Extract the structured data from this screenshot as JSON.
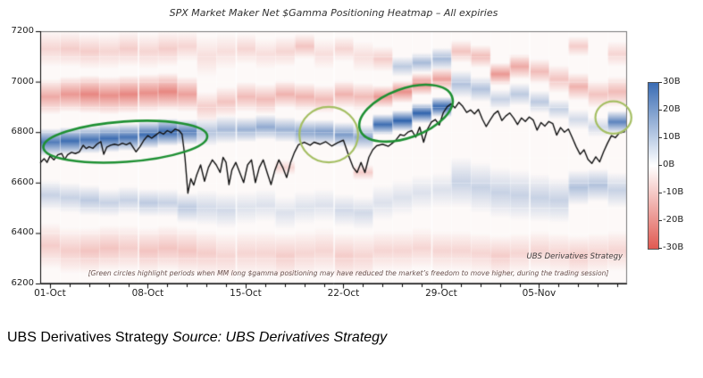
{
  "chart": {
    "title": "SPX Market Maker Net $Gamma Positioning Heatmap – All expiries",
    "watermark": "UBS Derivatives Strategy",
    "footnote": "[Green circles highlight periods when MM long $gamma positioning may have reduced the market’s freedom to move higher, during the trading session]",
    "colorbar": {
      "ticks": [
        "30B",
        "20B",
        "10B",
        "0B",
        "-10B",
        "-20B",
        "-30B"
      ],
      "max": 30,
      "min": -30
    }
  },
  "caption": {
    "brand": "UBS Derivatives Strategy",
    "source": "Source: UBS Derivatives Strategy"
  },
  "chart_data": {
    "type": "heatmap",
    "title": "SPX Market Maker Net $Gamma Positioning Heatmap – All expiries",
    "xlabel": "",
    "ylabel": "",
    "ylim": [
      6200,
      7200
    ],
    "y_ticks": [
      7200,
      7000,
      6800,
      6600,
      6400,
      6200
    ],
    "x_tick_labels": [
      "01-Oct",
      "08-Oct",
      "15-Oct",
      "22-Oct",
      "29-Oct",
      "05-Nov"
    ],
    "x_tick_days": [
      0,
      5,
      10,
      15,
      20,
      25
    ],
    "days": 30,
    "grid": true,
    "legend_position": "right-colorbar",
    "value_unit": "USD billions net $gamma",
    "value_range": [
      -30,
      30
    ],
    "colors": {
      "heat_pos": "#2f63ad",
      "heat_neg": "#dd4f47",
      "price": "#111111",
      "dark_green": "#1e9033",
      "light_green": "#a5bf63"
    },
    "columns": [
      [
        [
          6940,
          70,
          -9
        ],
        [
          6760,
          55,
          16
        ],
        [
          6550,
          60,
          5
        ],
        [
          6350,
          90,
          -5
        ],
        [
          7130,
          70,
          -4
        ]
      ],
      [
        [
          6950,
          70,
          -11
        ],
        [
          6765,
          55,
          18
        ],
        [
          6540,
          60,
          5
        ],
        [
          6330,
          90,
          -5
        ],
        [
          7130,
          70,
          -5
        ]
      ],
      [
        [
          6950,
          75,
          -13
        ],
        [
          6770,
          55,
          17
        ],
        [
          6530,
          60,
          6
        ],
        [
          6330,
          90,
          -6
        ],
        [
          7120,
          70,
          -5
        ]
      ],
      [
        [
          6945,
          75,
          -12
        ],
        [
          6775,
          55,
          18
        ],
        [
          6520,
          55,
          5
        ],
        [
          6340,
          90,
          -6
        ],
        [
          7120,
          70,
          -4
        ]
      ],
      [
        [
          6950,
          75,
          -13
        ],
        [
          6780,
          55,
          17
        ],
        [
          6530,
          55,
          5
        ],
        [
          6340,
          90,
          -5
        ],
        [
          7130,
          70,
          -5
        ]
      ],
      [
        [
          6955,
          75,
          -12
        ],
        [
          6790,
          55,
          18
        ],
        [
          6520,
          55,
          6
        ],
        [
          6330,
          90,
          -6
        ],
        [
          7120,
          70,
          -4
        ]
      ],
      [
        [
          6960,
          75,
          -13
        ],
        [
          6800,
          55,
          19
        ],
        [
          6520,
          55,
          5
        ],
        [
          6340,
          90,
          -6
        ],
        [
          7130,
          70,
          -5
        ]
      ],
      [
        [
          6950,
          70,
          -10
        ],
        [
          6800,
          50,
          16
        ],
        [
          6500,
          60,
          6
        ],
        [
          6330,
          90,
          -6
        ],
        [
          7140,
          60,
          -4
        ]
      ],
      [
        [
          6900,
          60,
          -5
        ],
        [
          6800,
          55,
          7
        ],
        [
          6500,
          70,
          4
        ],
        [
          6320,
          90,
          -5
        ],
        [
          7100,
          80,
          -3
        ]
      ],
      [
        [
          6920,
          60,
          -6
        ],
        [
          6810,
          55,
          8
        ],
        [
          6490,
          70,
          4
        ],
        [
          6310,
          90,
          -4
        ],
        [
          7120,
          70,
          -3
        ]
      ],
      [
        [
          6940,
          60,
          -7
        ],
        [
          6810,
          50,
          9
        ],
        [
          6500,
          65,
          3
        ],
        [
          6320,
          90,
          -4
        ],
        [
          7130,
          60,
          -4
        ]
      ],
      [
        [
          6930,
          60,
          -7
        ],
        [
          6820,
          50,
          10
        ],
        [
          6510,
          65,
          3
        ],
        [
          6320,
          90,
          -4
        ],
        [
          7110,
          60,
          -3
        ]
      ],
      [
        [
          6950,
          55,
          -8
        ],
        [
          6810,
          50,
          9
        ],
        [
          6660,
          30,
          -4
        ],
        [
          6480,
          65,
          3
        ],
        [
          6310,
          90,
          -5
        ],
        [
          7120,
          60,
          -4
        ]
      ],
      [
        [
          6940,
          55,
          -8
        ],
        [
          6800,
          50,
          11
        ],
        [
          6500,
          65,
          3
        ],
        [
          6320,
          90,
          -4
        ],
        [
          7140,
          50,
          -6
        ]
      ],
      [
        [
          6930,
          55,
          -7
        ],
        [
          6800,
          50,
          12
        ],
        [
          6510,
          65,
          3
        ],
        [
          6330,
          90,
          -4
        ],
        [
          7110,
          60,
          -3
        ]
      ],
      [
        [
          6950,
          55,
          -8
        ],
        [
          6790,
          50,
          12
        ],
        [
          6490,
          65,
          4
        ],
        [
          6310,
          90,
          -5
        ],
        [
          7130,
          50,
          -4
        ]
      ],
      [
        [
          6940,
          55,
          -7
        ],
        [
          6780,
          50,
          10
        ],
        [
          6640,
          30,
          -5
        ],
        [
          6480,
          65,
          4
        ],
        [
          6310,
          90,
          -4
        ],
        [
          7100,
          60,
          -3
        ]
      ],
      [
        [
          6940,
          45,
          -11
        ],
        [
          6830,
          42,
          18
        ],
        [
          6520,
          70,
          3
        ],
        [
          6330,
          80,
          -4
        ],
        [
          7090,
          50,
          -5
        ]
      ],
      [
        [
          6960,
          45,
          -12
        ],
        [
          6845,
          42,
          20
        ],
        [
          6540,
          70,
          3
        ],
        [
          6330,
          80,
          -4
        ],
        [
          7060,
          40,
          6
        ]
      ],
      [
        [
          6990,
          45,
          -12
        ],
        [
          6875,
          40,
          22
        ],
        [
          6560,
          70,
          3
        ],
        [
          6340,
          80,
          -4
        ],
        [
          7075,
          40,
          8
        ]
      ],
      [
        [
          7010,
          45,
          -10
        ],
        [
          6900,
          40,
          20
        ],
        [
          7090,
          45,
          8
        ],
        [
          6570,
          70,
          3
        ],
        [
          6330,
          80,
          -4
        ]
      ],
      [
        [
          7120,
          45,
          -6
        ],
        [
          6990,
          55,
          7
        ],
        [
          6600,
          100,
          5
        ],
        [
          6330,
          80,
          -4
        ]
      ],
      [
        [
          7100,
          45,
          -7
        ],
        [
          6970,
          50,
          7
        ],
        [
          6580,
          100,
          5
        ],
        [
          6320,
          80,
          -4
        ]
      ],
      [
        [
          7030,
          45,
          -11
        ],
        [
          6930,
          40,
          5
        ],
        [
          6560,
          100,
          5
        ],
        [
          6310,
          80,
          -5
        ]
      ],
      [
        [
          7060,
          50,
          -9
        ],
        [
          6950,
          45,
          6
        ],
        [
          6550,
          100,
          5
        ],
        [
          6320,
          80,
          -4
        ]
      ],
      [
        [
          7040,
          50,
          -7
        ],
        [
          6920,
          45,
          6
        ],
        [
          6540,
          95,
          5
        ],
        [
          6330,
          80,
          -4
        ]
      ],
      [
        [
          7010,
          55,
          -6
        ],
        [
          6890,
          40,
          5
        ],
        [
          6530,
          90,
          5
        ],
        [
          6320,
          80,
          -4
        ]
      ],
      [
        [
          6980,
          55,
          -8
        ],
        [
          6850,
          40,
          4
        ],
        [
          6580,
          70,
          7
        ],
        [
          6310,
          80,
          -5
        ],
        [
          7140,
          40,
          -5
        ]
      ],
      [
        [
          6950,
          55,
          -6
        ],
        [
          6820,
          40,
          4
        ],
        [
          6590,
          65,
          7
        ],
        [
          6320,
          80,
          -4
        ]
      ],
      [
        [
          6960,
          60,
          -7
        ],
        [
          6840,
          45,
          15
        ],
        [
          6570,
          70,
          5
        ],
        [
          6330,
          80,
          -4
        ],
        [
          7110,
          50,
          -4
        ]
      ]
    ],
    "price_line": [
      [
        0,
        6678
      ],
      [
        0.2,
        6695
      ],
      [
        0.35,
        6680
      ],
      [
        0.5,
        6705
      ],
      [
        0.7,
        6690
      ],
      [
        0.9,
        6710
      ],
      [
        1.1,
        6715
      ],
      [
        1.25,
        6692
      ],
      [
        1.4,
        6710
      ],
      [
        1.6,
        6720
      ],
      [
        1.8,
        6715
      ],
      [
        2,
        6722
      ],
      [
        2.2,
        6748
      ],
      [
        2.35,
        6735
      ],
      [
        2.5,
        6742
      ],
      [
        2.7,
        6736
      ],
      [
        2.9,
        6752
      ],
      [
        3.1,
        6762
      ],
      [
        3.25,
        6712
      ],
      [
        3.4,
        6740
      ],
      [
        3.6,
        6748
      ],
      [
        3.8,
        6752
      ],
      [
        4,
        6748
      ],
      [
        4.2,
        6756
      ],
      [
        4.4,
        6750
      ],
      [
        4.6,
        6758
      ],
      [
        4.9,
        6722
      ],
      [
        5.1,
        6742
      ],
      [
        5.3,
        6768
      ],
      [
        5.5,
        6786
      ],
      [
        5.7,
        6776
      ],
      [
        5.9,
        6788
      ],
      [
        6.1,
        6800
      ],
      [
        6.3,
        6792
      ],
      [
        6.5,
        6806
      ],
      [
        6.7,
        6798
      ],
      [
        6.9,
        6812
      ],
      [
        7.1,
        6806
      ],
      [
        7.25,
        6792
      ],
      [
        7.4,
        6700
      ],
      [
        7.55,
        6558
      ],
      [
        7.7,
        6615
      ],
      [
        7.85,
        6590
      ],
      [
        8,
        6630
      ],
      [
        8.2,
        6670
      ],
      [
        8.4,
        6605
      ],
      [
        8.6,
        6660
      ],
      [
        8.8,
        6690
      ],
      [
        9,
        6670
      ],
      [
        9.2,
        6640
      ],
      [
        9.35,
        6700
      ],
      [
        9.5,
        6680
      ],
      [
        9.65,
        6592
      ],
      [
        9.8,
        6650
      ],
      [
        10,
        6680
      ],
      [
        10.2,
        6640
      ],
      [
        10.4,
        6600
      ],
      [
        10.6,
        6670
      ],
      [
        10.8,
        6690
      ],
      [
        11,
        6600
      ],
      [
        11.2,
        6660
      ],
      [
        11.4,
        6690
      ],
      [
        11.6,
        6640
      ],
      [
        11.8,
        6592
      ],
      [
        12,
        6650
      ],
      [
        12.2,
        6690
      ],
      [
        12.4,
        6660
      ],
      [
        12.6,
        6620
      ],
      [
        12.8,
        6680
      ],
      [
        13,
        6720
      ],
      [
        13.2,
        6750
      ],
      [
        13.5,
        6760
      ],
      [
        13.8,
        6748
      ],
      [
        14,
        6760
      ],
      [
        14.3,
        6752
      ],
      [
        14.6,
        6762
      ],
      [
        14.9,
        6745
      ],
      [
        15.2,
        6758
      ],
      [
        15.5,
        6768
      ],
      [
        15.8,
        6700
      ],
      [
        16,
        6660
      ],
      [
        16.2,
        6640
      ],
      [
        16.4,
        6680
      ],
      [
        16.6,
        6640
      ],
      [
        16.8,
        6700
      ],
      [
        17,
        6730
      ],
      [
        17.2,
        6746
      ],
      [
        17.5,
        6752
      ],
      [
        17.8,
        6744
      ],
      [
        18,
        6756
      ],
      [
        18.2,
        6770
      ],
      [
        18.4,
        6790
      ],
      [
        18.6,
        6786
      ],
      [
        18.8,
        6800
      ],
      [
        19,
        6806
      ],
      [
        19.2,
        6780
      ],
      [
        19.4,
        6820
      ],
      [
        19.6,
        6760
      ],
      [
        19.8,
        6812
      ],
      [
        20,
        6840
      ],
      [
        20.2,
        6850
      ],
      [
        20.4,
        6828
      ],
      [
        20.6,
        6876
      ],
      [
        20.8,
        6900
      ],
      [
        21,
        6912
      ],
      [
        21.2,
        6896
      ],
      [
        21.4,
        6918
      ],
      [
        21.6,
        6902
      ],
      [
        21.8,
        6878
      ],
      [
        22,
        6888
      ],
      [
        22.2,
        6872
      ],
      [
        22.4,
        6890
      ],
      [
        22.6,
        6852
      ],
      [
        22.8,
        6822
      ],
      [
        23,
        6848
      ],
      [
        23.2,
        6872
      ],
      [
        23.4,
        6884
      ],
      [
        23.6,
        6846
      ],
      [
        23.8,
        6864
      ],
      [
        24,
        6876
      ],
      [
        24.2,
        6856
      ],
      [
        24.4,
        6830
      ],
      [
        24.6,
        6856
      ],
      [
        24.8,
        6842
      ],
      [
        25,
        6860
      ],
      [
        25.2,
        6848
      ],
      [
        25.4,
        6808
      ],
      [
        25.6,
        6838
      ],
      [
        25.8,
        6824
      ],
      [
        26,
        6842
      ],
      [
        26.2,
        6834
      ],
      [
        26.4,
        6788
      ],
      [
        26.6,
        6818
      ],
      [
        26.8,
        6800
      ],
      [
        27,
        6812
      ],
      [
        27.2,
        6778
      ],
      [
        27.4,
        6742
      ],
      [
        27.6,
        6712
      ],
      [
        27.8,
        6730
      ],
      [
        28,
        6692
      ],
      [
        28.2,
        6676
      ],
      [
        28.4,
        6702
      ],
      [
        28.6,
        6682
      ],
      [
        28.8,
        6722
      ],
      [
        29,
        6756
      ],
      [
        29.2,
        6786
      ],
      [
        29.4,
        6778
      ],
      [
        29.6,
        6796
      ],
      [
        29.9,
        6802
      ]
    ],
    "highlights": [
      {
        "day": 4.35,
        "price": 6762,
        "rx_days": 4.2,
        "ry_pts": 80,
        "rot": -4,
        "shade": "dark"
      },
      {
        "day": 14.75,
        "price": 6790,
        "rx_days": 1.5,
        "ry_pts": 110,
        "rot": 0,
        "shade": "light"
      },
      {
        "day": 18.7,
        "price": 6875,
        "rx_days": 2.5,
        "ry_pts": 97,
        "rot": -20,
        "shade": "dark"
      },
      {
        "day": 29.3,
        "price": 6858,
        "rx_days": 0.92,
        "ry_pts": 64,
        "rot": 0,
        "shade": "light"
      }
    ]
  }
}
